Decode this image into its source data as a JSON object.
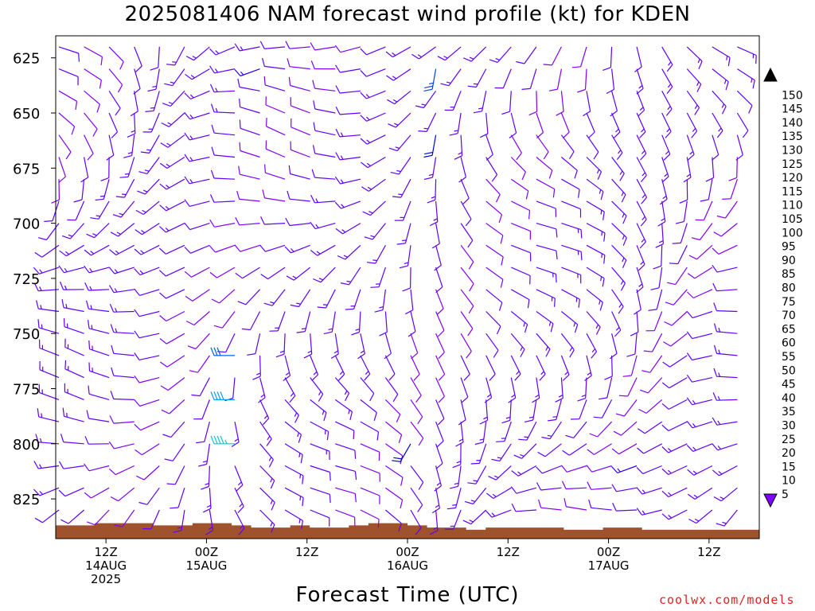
{
  "chart_data": {
    "type": "wind_barbs",
    "title": "2025081406 NAM forecast wind profile (kt) for KDEN",
    "xlabel": "Forecast Time (UTC)",
    "credit": "coolwx.com/models",
    "yaxis": {
      "ticks": [
        "625",
        "650",
        "675",
        "700",
        "725",
        "750",
        "775",
        "800",
        "825"
      ],
      "range_mb": [
        615,
        843
      ]
    },
    "xaxis": {
      "start": "2025-08-14T06Z",
      "end": "2025-08-17T18Z",
      "ticks": [
        {
          "time": "2025-08-14T12Z",
          "lines": [
            "12Z",
            "14AUG",
            "2025"
          ]
        },
        {
          "time": "2025-08-15T00Z",
          "lines": [
            "00Z",
            "15AUG"
          ]
        },
        {
          "time": "2025-08-15T12Z",
          "lines": [
            "12Z"
          ]
        },
        {
          "time": "2025-08-16T00Z",
          "lines": [
            "00Z",
            "16AUG"
          ]
        },
        {
          "time": "2025-08-16T12Z",
          "lines": [
            "12Z"
          ]
        },
        {
          "time": "2025-08-17T00Z",
          "lines": [
            "00Z",
            "17AUG"
          ]
        },
        {
          "time": "2025-08-17T12Z",
          "lines": [
            "12Z"
          ]
        }
      ]
    },
    "colorbar": {
      "unit": "kt",
      "levels": [
        "5",
        "10",
        "15",
        "20",
        "25",
        "30",
        "35",
        "40",
        "45",
        "50",
        "55",
        "60",
        "65",
        "70",
        "75",
        "80",
        "85",
        "90",
        "95",
        "100",
        "105",
        "110",
        "115",
        "120",
        "125",
        "130",
        "135",
        "140",
        "145",
        "150"
      ],
      "colors": [
        "#8000ff",
        "#6000ff",
        "#3000e8",
        "#0000d0",
        "#0040f0",
        "#0060ff",
        "#0080ff",
        "#00a0ff",
        "#00c8e0",
        "#00e0c0",
        "#00e880",
        "#00e040",
        "#40e040",
        "#80f000",
        "#c0ff00",
        "#ffff00",
        "#ffe000",
        "#ffc000",
        "#ffa000",
        "#ff8000",
        "#ff7000",
        "#ff5000",
        "#ff2000",
        "#ff0000",
        "#ff0040",
        "#ff0060",
        "#ff0080",
        "#ff00a0",
        "#ff00c0",
        "#ff00e0"
      ]
    },
    "terrain": {
      "color": "#a0522d",
      "surface_mb": [
        837,
        837,
        836,
        836,
        836,
        837,
        837,
        836,
        836,
        837,
        838,
        838,
        837,
        838,
        838,
        837,
        836,
        836,
        837,
        838,
        838,
        839,
        838,
        838,
        838,
        838,
        839,
        839,
        838,
        838,
        839,
        839,
        839,
        839,
        839,
        839
      ]
    },
    "barb_times_hours": [
      0,
      3,
      6,
      9,
      12,
      15,
      18,
      21,
      24,
      27,
      30,
      33,
      36,
      39,
      42,
      45,
      48,
      51,
      54,
      57,
      60,
      63,
      66,
      69,
      72,
      75,
      78,
      81,
      84
    ],
    "barb_levels_mb": [
      620,
      630,
      640,
      650,
      660,
      670,
      680,
      690,
      700,
      710,
      720,
      730,
      740,
      750,
      760,
      770,
      780,
      790,
      800,
      810,
      820,
      830
    ],
    "sample_winds": [
      {
        "t": 21,
        "p": 800,
        "dir": 270,
        "kt": 45
      },
      {
        "t": 21,
        "p": 780,
        "dir": 270,
        "kt": 40
      },
      {
        "t": 21,
        "p": 760,
        "dir": 270,
        "kt": 30
      },
      {
        "t": 45,
        "p": 630,
        "dir": 190,
        "kt": 25
      },
      {
        "t": 45,
        "p": 660,
        "dir": 190,
        "kt": 20
      },
      {
        "t": 42,
        "p": 800,
        "dir": 210,
        "kt": 20
      },
      {
        "t": 69,
        "p": 810,
        "dir": 250,
        "kt": 15
      },
      {
        "t": 24,
        "p": 630,
        "dir": 250,
        "kt": 15
      }
    ]
  }
}
